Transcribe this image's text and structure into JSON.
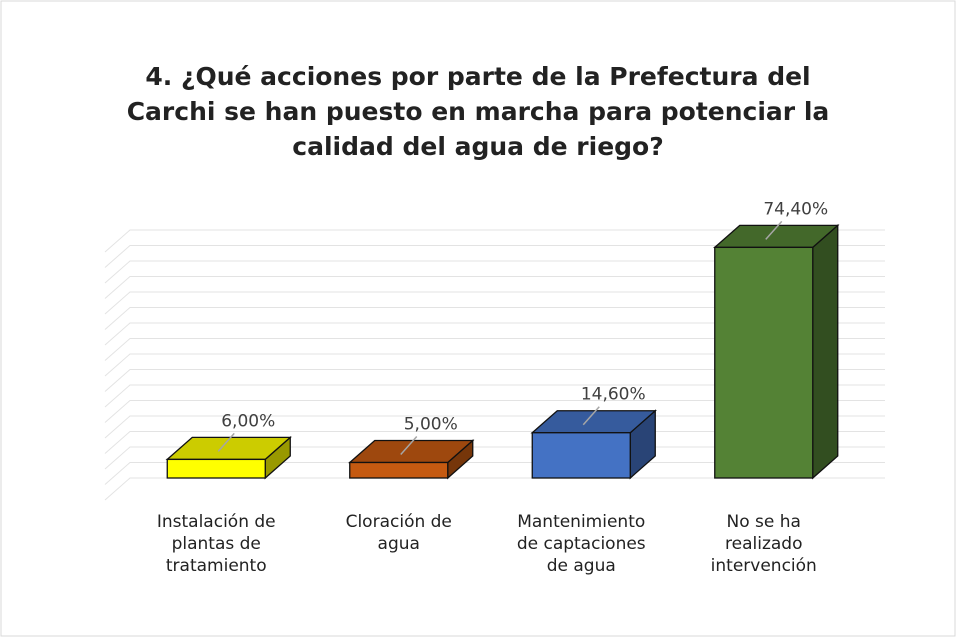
{
  "chart_data": {
    "type": "bar3d",
    "title": "4. ¿Qué acciones por parte de la Prefectura del Carchi se han puesto en marcha para potenciar la calidad del agua de riego?",
    "categories": [
      "Instalación de plantas de tratamiento",
      "Cloración de agua",
      "Mantenimiento de captaciones de agua",
      "No se ha realizado intervención"
    ],
    "values": [
      6,
      5,
      14.6,
      74.4
    ],
    "value_labels": [
      "6,00%",
      "5,00%",
      "14,60%",
      "74,40%"
    ],
    "colors": [
      "#ffff00",
      "#c55a11",
      "#4472c4",
      "#548235"
    ],
    "ylim": [
      0,
      80
    ],
    "yticks": [
      0,
      5,
      10,
      15,
      20,
      25,
      30,
      35,
      40,
      45,
      50,
      55,
      60,
      65,
      70,
      75,
      80
    ],
    "grid": true
  }
}
